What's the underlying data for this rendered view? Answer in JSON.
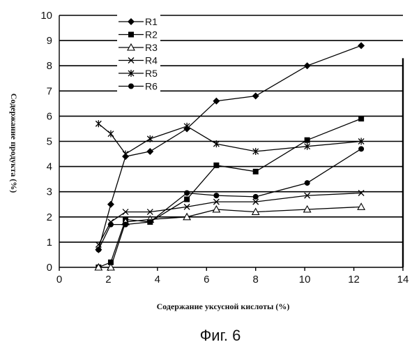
{
  "chart_data": {
    "type": "line",
    "title": "",
    "xlabel": "Содержание уксусной кислоты (%)",
    "ylabel": "Содержание продукта (%)",
    "xlim": [
      0,
      14
    ],
    "ylim": [
      0,
      10
    ],
    "x_ticks": [
      "0",
      "2",
      "4",
      "6",
      "8",
      "10",
      "12",
      "14"
    ],
    "y_ticks": [
      "0",
      "1",
      "2",
      "3",
      "4",
      "5",
      "6",
      "7",
      "8",
      "9",
      "10"
    ],
    "grid": "horizontal",
    "legend_position": "top-left",
    "series": [
      {
        "name": "R1",
        "marker": "diamond",
        "x": [
          1.6,
          2.1,
          2.7,
          3.7,
          5.2,
          6.4,
          8.0,
          10.1,
          12.3
        ],
        "y": [
          0.7,
          2.5,
          4.4,
          4.6,
          5.5,
          6.6,
          6.8,
          8.0,
          8.8
        ]
      },
      {
        "name": "R2",
        "marker": "square",
        "x": [
          1.6,
          2.1,
          2.7,
          3.7,
          5.2,
          6.4,
          8.0,
          10.1,
          12.3
        ],
        "y": [
          0.0,
          0.2,
          1.9,
          1.8,
          2.7,
          4.05,
          3.8,
          5.05,
          5.9
        ]
      },
      {
        "name": "R3",
        "marker": "triangle",
        "x": [
          1.6,
          2.1,
          2.7,
          3.7,
          5.2,
          6.4,
          8.0,
          10.1,
          12.3
        ],
        "y": [
          0.0,
          0.0,
          1.8,
          1.9,
          2.0,
          2.3,
          2.2,
          2.3,
          2.4
        ]
      },
      {
        "name": "R4",
        "marker": "x",
        "x": [
          1.6,
          2.1,
          2.7,
          3.7,
          5.2,
          6.4,
          8.0,
          10.1,
          12.3
        ],
        "y": [
          0.9,
          1.8,
          2.2,
          2.2,
          2.4,
          2.6,
          2.6,
          2.85,
          2.95
        ]
      },
      {
        "name": "R5",
        "marker": "star",
        "x": [
          1.6,
          2.1,
          2.7,
          3.7,
          5.2,
          6.4,
          8.0,
          10.1,
          12.3
        ],
        "y": [
          5.7,
          5.3,
          4.5,
          5.1,
          5.6,
          4.9,
          4.6,
          4.8,
          5.0
        ]
      },
      {
        "name": "R6",
        "marker": "circle",
        "x": [
          1.6,
          2.1,
          2.7,
          3.7,
          5.2,
          6.4,
          8.0,
          10.1,
          12.3
        ],
        "y": [
          0.7,
          1.7,
          1.7,
          1.8,
          2.95,
          2.85,
          2.8,
          3.35,
          4.7
        ]
      }
    ]
  },
  "caption": "Фиг. 6"
}
